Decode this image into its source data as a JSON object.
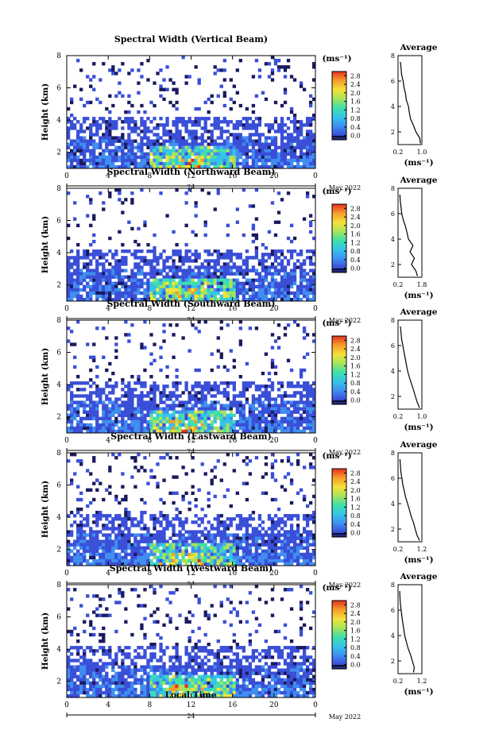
{
  "figure": {
    "xlabel": "Local Time",
    "ylabel": "Height (km)",
    "date_prefix": "24",
    "date_suffix": "May 2022",
    "colorbar_unit": "(ms⁻¹)",
    "average_title": "Average",
    "average_unit": "(ms⁻¹)",
    "x_ticks": [
      "0",
      "4",
      "8",
      "12",
      "16",
      "20",
      "0"
    ],
    "y_ticks": [
      "2",
      "4",
      "6",
      "8"
    ],
    "colorbar_ticks": [
      "0.0",
      "0.4",
      "0.8",
      "1.2",
      "1.6",
      "2.0",
      "2.4",
      "2.8"
    ],
    "colors": {
      "scale": [
        "#1a1a5e",
        "#3a4fd8",
        "#3f8ef0",
        "#35c3ea",
        "#3fe0a8",
        "#a7e45a",
        "#f4e23a",
        "#f79a2b",
        "#e4301f"
      ]
    }
  },
  "panels": [
    {
      "title": "Spectral Width (Vertical Beam)",
      "avg_xticks": [
        "0.2",
        "1.0"
      ]
    },
    {
      "title": "Spectral Width (Northward Beam)",
      "avg_xticks": [
        "0.2",
        "1.8"
      ]
    },
    {
      "title": "Spectral Width (Southward Beam)",
      "avg_xticks": [
        "0.2",
        "1.0"
      ]
    },
    {
      "title": "Spectral Width (Eastward Beam)",
      "avg_xticks": [
        "0.2",
        "1.2"
      ]
    },
    {
      "title": "Spectral Width (Westward Beam)",
      "avg_xticks": [
        "0.2",
        "1.2"
      ]
    }
  ],
  "chart_data": [
    {
      "type": "heatmap",
      "title": "Spectral Width (Vertical Beam)",
      "xlabel": "",
      "ylabel": "Height (km)",
      "xlim": [
        0,
        24
      ],
      "ylim": [
        1,
        8
      ],
      "clim": [
        0.0,
        2.8
      ]
    },
    {
      "type": "line",
      "title": "Average",
      "xlabel": "(ms⁻¹)",
      "xlim": [
        0.2,
        1.0
      ],
      "ylim": [
        1,
        8
      ],
      "x": [
        0.95,
        0.93,
        0.8,
        0.72,
        0.62,
        0.58,
        0.55,
        0.48,
        0.45,
        0.4,
        0.37,
        0.32,
        0.3,
        0.28
      ],
      "y": [
        1.1,
        1.5,
        2.0,
        2.5,
        3.0,
        3.5,
        4.0,
        4.5,
        5.0,
        5.5,
        6.0,
        6.5,
        7.0,
        7.5
      ]
    },
    {
      "type": "heatmap",
      "title": "Spectral Width (Northward Beam)",
      "xlabel": "",
      "ylabel": "Height (km)",
      "xlim": [
        0,
        24
      ],
      "ylim": [
        1,
        8
      ],
      "clim": [
        0.0,
        2.8
      ]
    },
    {
      "type": "line",
      "title": "Average",
      "xlabel": "(ms⁻¹)",
      "xlim": [
        0.2,
        1.8
      ],
      "ylim": [
        1,
        8
      ],
      "x": [
        1.5,
        1.4,
        1.1,
        1.3,
        1.0,
        1.2,
        0.9,
        0.8,
        0.7,
        0.55,
        0.45,
        0.4,
        0.35,
        0.32
      ],
      "y": [
        1.1,
        1.5,
        2.0,
        2.5,
        3.0,
        3.5,
        4.0,
        4.5,
        5.0,
        5.5,
        6.0,
        6.5,
        7.0,
        7.5
      ]
    },
    {
      "type": "heatmap",
      "title": "Spectral Width (Southward Beam)",
      "xlabel": "",
      "ylabel": "Height (km)",
      "xlim": [
        0,
        24
      ],
      "ylim": [
        1,
        8
      ],
      "clim": [
        0.0,
        2.8
      ]
    },
    {
      "type": "line",
      "title": "Average",
      "xlabel": "(ms⁻¹)",
      "xlim": [
        0.2,
        1.0
      ],
      "ylim": [
        1,
        8
      ],
      "x": [
        0.92,
        0.85,
        0.78,
        0.72,
        0.65,
        0.58,
        0.52,
        0.48,
        0.44,
        0.4,
        0.36,
        0.32,
        0.3,
        0.28
      ],
      "y": [
        1.1,
        1.5,
        2.0,
        2.5,
        3.0,
        3.5,
        4.0,
        4.5,
        5.0,
        5.5,
        6.0,
        6.5,
        7.0,
        7.5
      ]
    },
    {
      "type": "heatmap",
      "title": "Spectral Width (Eastward Beam)",
      "xlabel": "",
      "ylabel": "Height (km)",
      "xlim": [
        0,
        24
      ],
      "ylim": [
        1,
        8
      ],
      "clim": [
        0.0,
        2.8
      ]
    },
    {
      "type": "line",
      "title": "Average",
      "xlabel": "(ms⁻¹)",
      "xlim": [
        0.2,
        1.2
      ],
      "ylim": [
        1,
        8
      ],
      "x": [
        1.1,
        1.0,
        0.92,
        0.85,
        0.75,
        0.68,
        0.6,
        0.52,
        0.46,
        0.4,
        0.36,
        0.32,
        0.3,
        0.28
      ],
      "y": [
        1.1,
        1.5,
        2.0,
        2.5,
        3.0,
        3.5,
        4.0,
        4.5,
        5.0,
        5.5,
        6.0,
        6.5,
        7.0,
        7.5
      ]
    },
    {
      "type": "heatmap",
      "title": "Spectral Width (Westward Beam)",
      "xlabel": "Local Time",
      "ylabel": "Height (km)",
      "xlim": [
        0,
        24
      ],
      "ylim": [
        1,
        8
      ],
      "clim": [
        0.0,
        2.8
      ]
    },
    {
      "type": "line",
      "title": "Average",
      "xlabel": "(ms⁻¹)",
      "xlim": [
        0.2,
        1.2
      ],
      "ylim": [
        1,
        8
      ],
      "x": [
        0.85,
        0.88,
        0.8,
        0.72,
        0.62,
        0.55,
        0.48,
        0.44,
        0.4,
        0.36,
        0.33,
        0.3,
        0.28,
        0.27
      ],
      "y": [
        1.1,
        1.5,
        2.0,
        2.5,
        3.0,
        3.5,
        4.0,
        4.5,
        5.0,
        5.5,
        6.0,
        6.5,
        7.0,
        7.5
      ]
    }
  ]
}
